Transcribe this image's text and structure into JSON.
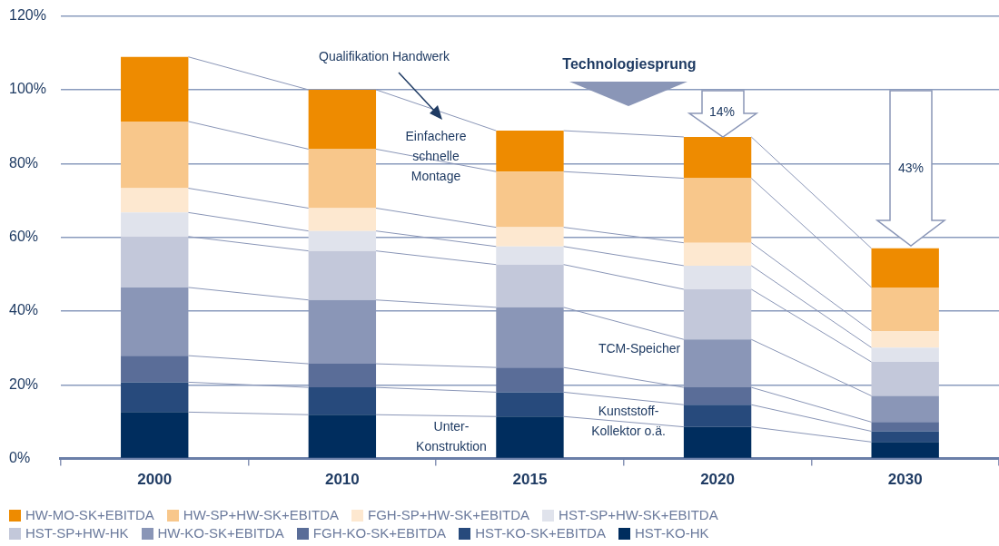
{
  "chart_data": {
    "type": "bar",
    "stacked": true,
    "categories": [
      "2000",
      "2010",
      "2015",
      "2020",
      "2030"
    ],
    "ylim": [
      0,
      120
    ],
    "yticks": [
      {
        "value": 0,
        "label": "0%"
      },
      {
        "value": 20,
        "label": "20%"
      },
      {
        "value": 40,
        "label": "40%"
      },
      {
        "value": 60,
        "label": "60%"
      },
      {
        "value": 80,
        "label": "80%"
      },
      {
        "value": 100,
        "label": "100%"
      },
      {
        "value": 120,
        "label": "120%"
      }
    ],
    "grid": "y",
    "legend": "bottom",
    "series": [
      {
        "name": "HST-KO-HK",
        "color": "#002d5e",
        "values": [
          12.6,
          11.9,
          11.4,
          8.6,
          4.5
        ]
      },
      {
        "name": "HST-KO-SK+EBITDA",
        "color": "#274a7c",
        "values": [
          8.1,
          7.4,
          6.6,
          6.0,
          2.9
        ]
      },
      {
        "name": "FGH-KO-SK+EBITDA",
        "color": "#5a6d98",
        "values": [
          7.2,
          6.4,
          6.7,
          4.7,
          2.5
        ]
      },
      {
        "name": "HW-KO-SK+EBITDA",
        "color": "#8a96b7",
        "values": [
          18.5,
          17.3,
          16.3,
          13.0,
          7.1
        ]
      },
      {
        "name": "HST-SP+HW-HK",
        "color": "#c3c8da",
        "values": [
          13.8,
          13.3,
          11.6,
          13.6,
          9.2
        ]
      },
      {
        "name": "HST-SP+HW-SK+EBITDA",
        "color": "#e0e3ec",
        "values": [
          6.5,
          5.4,
          4.9,
          6.4,
          3.9
        ]
      },
      {
        "name": "FGH-SP+HW-SK+EBITDA",
        "color": "#fde8d0",
        "values": [
          6.6,
          6.2,
          5.2,
          6.2,
          4.5
        ]
      },
      {
        "name": "HW-SP+HW-SK+EBITDA",
        "color": "#f8c78b",
        "values": [
          18.1,
          16.0,
          15.1,
          17.5,
          11.8
        ]
      },
      {
        "name": "HW-MO-SK+EBITDA",
        "color": "#ee8b00",
        "values": [
          17.5,
          16.1,
          11.1,
          11.2,
          10.6
        ]
      }
    ],
    "annotations": [
      "Qualifikation Handwerk",
      "Technologiesprung",
      "Einfachere schnelle Montage",
      {
        "text": "TCM-Speicher",
        "x": "2020",
        "y": 32.3
      },
      "Unter-Konstruktion",
      "Kunststoff-Kollektor o.ä.",
      "14%",
      "43%"
    ]
  }
}
